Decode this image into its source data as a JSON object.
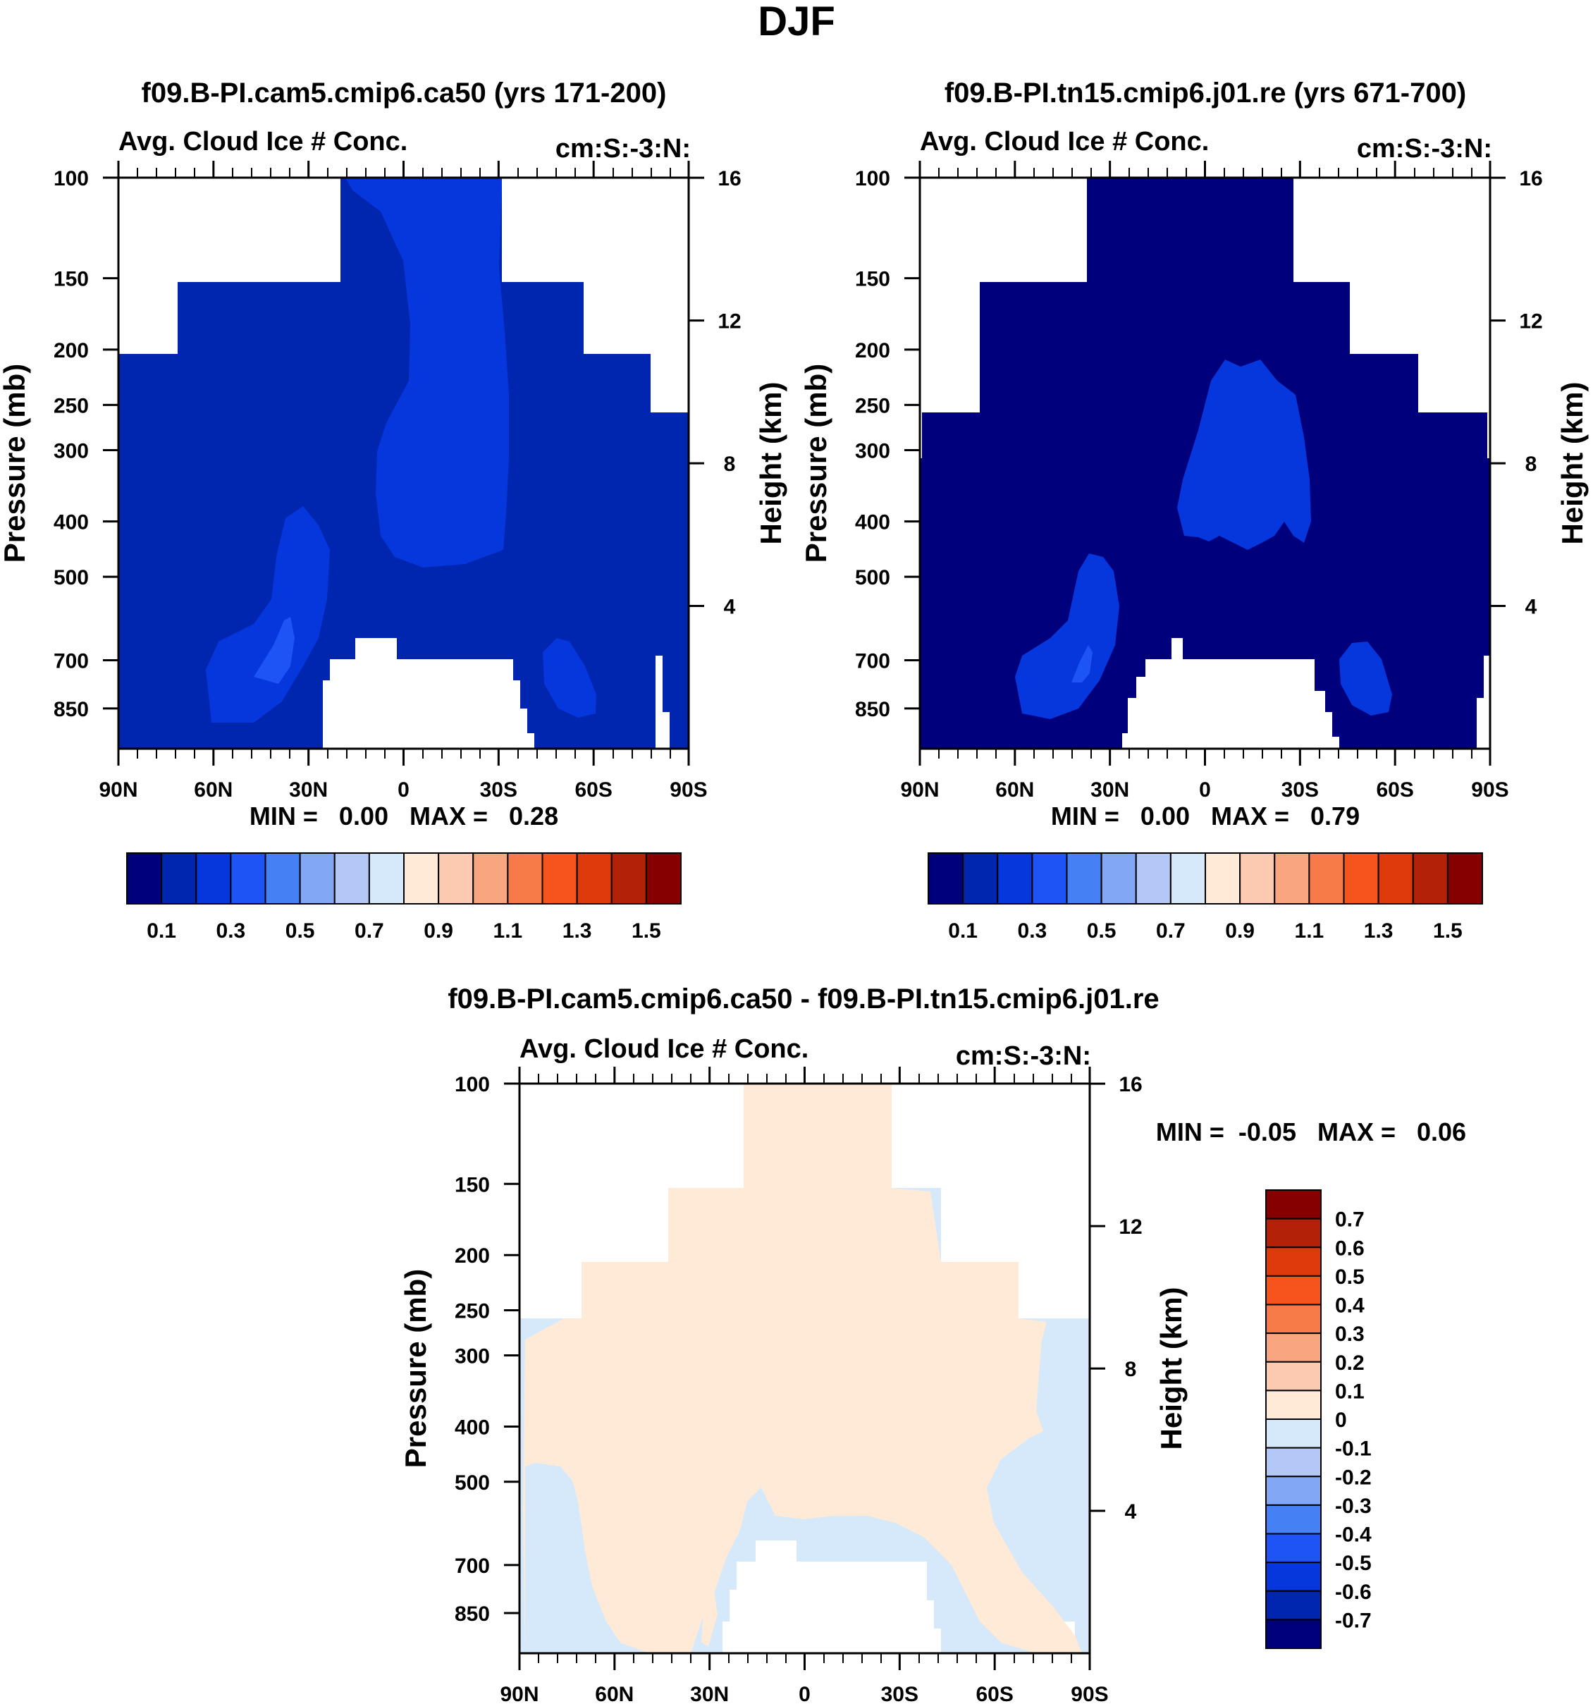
{
  "figure": {
    "title": "DJF"
  },
  "colors": {
    "abs_levels": [
      "#00007d",
      "#0026b0",
      "#0537dc",
      "#1e54f5",
      "#4680f5",
      "#82a8f5",
      "#b4c8f7",
      "#d6e9fa",
      "#feead6",
      "#fbcab0",
      "#f9a57f",
      "#f77b49",
      "#f5541d",
      "#df3a0c",
      "#b32108",
      "#870000"
    ],
    "diff_levels": [
      "#00007d",
      "#0026b0",
      "#0537dc",
      "#1e54f5",
      "#4680f5",
      "#82a8f5",
      "#b4c8f7",
      "#d6e9fa",
      "#feead6",
      "#fbcab0",
      "#f9a57f",
      "#f77b49",
      "#f5541d",
      "#df3a0c",
      "#b32108",
      "#870000"
    ]
  },
  "chart_data": [
    {
      "id": "panel-left",
      "type": "heatmap",
      "title": "f09.B-PI.cam5.cmip6.ca50 (yrs 171-200)",
      "subtitle_left": "Avg. Cloud Ice # Conc.",
      "subtitle_right": "cm:S:-3:N:",
      "ylabel": "Pressure (mb)",
      "ylabel_right": "Height (km)",
      "x_ticks": [
        "90N",
        "60N",
        "30N",
        "0",
        "30S",
        "60S",
        "90S"
      ],
      "x_values": [
        90,
        60,
        30,
        0,
        -30,
        -60,
        -90
      ],
      "y_ticks": [
        "100",
        "150",
        "200",
        "250",
        "300",
        "400",
        "500",
        "700",
        "850"
      ],
      "y_values": [
        100,
        150,
        200,
        250,
        300,
        400,
        500,
        700,
        850
      ],
      "y_right_ticks": [
        "16",
        "12",
        "8",
        "4"
      ],
      "y_right_values": [
        16,
        12,
        8,
        4
      ],
      "min_max": "MIN =   0.00   MAX =   0.28",
      "colorbar_labels": [
        "0.1",
        "0.3",
        "0.5",
        "0.7",
        "0.9",
        "1.1",
        "1.3",
        "1.5"
      ],
      "colorbar_values": [
        0.1,
        0.3,
        0.5,
        0.7,
        0.9,
        1.1,
        1.3,
        1.5
      ]
    },
    {
      "id": "panel-right",
      "type": "heatmap",
      "title": "f09.B-PI.tn15.cmip6.j01.re (yrs 671-700)",
      "subtitle_left": "Avg. Cloud Ice # Conc.",
      "subtitle_right": "cm:S:-3:N:",
      "ylabel": "Pressure (mb)",
      "ylabel_right": "Height (km)",
      "x_ticks": [
        "90N",
        "60N",
        "30N",
        "0",
        "30S",
        "60S",
        "90S"
      ],
      "x_values": [
        90,
        60,
        30,
        0,
        -30,
        -60,
        -90
      ],
      "y_ticks": [
        "100",
        "150",
        "200",
        "250",
        "300",
        "400",
        "500",
        "700",
        "850"
      ],
      "y_values": [
        100,
        150,
        200,
        250,
        300,
        400,
        500,
        700,
        850
      ],
      "y_right_ticks": [
        "16",
        "12",
        "8",
        "4"
      ],
      "y_right_values": [
        16,
        12,
        8,
        4
      ],
      "min_max": "MIN =   0.00   MAX =   0.79",
      "colorbar_labels": [
        "0.1",
        "0.3",
        "0.5",
        "0.7",
        "0.9",
        "1.1",
        "1.3",
        "1.5"
      ],
      "colorbar_values": [
        0.1,
        0.3,
        0.5,
        0.7,
        0.9,
        1.1,
        1.3,
        1.5
      ]
    },
    {
      "id": "panel-diff",
      "type": "heatmap",
      "title": "f09.B-PI.cam5.cmip6.ca50 - f09.B-PI.tn15.cmip6.j01.re",
      "subtitle_left": "Avg. Cloud Ice # Conc.",
      "subtitle_right": "cm:S:-3:N:",
      "ylabel": "Pressure (mb)",
      "ylabel_right": "Height (km)",
      "x_ticks": [
        "90N",
        "60N",
        "30N",
        "0",
        "30S",
        "60S",
        "90S"
      ],
      "x_values": [
        90,
        60,
        30,
        0,
        -30,
        -60,
        -90
      ],
      "y_ticks": [
        "100",
        "150",
        "200",
        "250",
        "300",
        "400",
        "500",
        "700",
        "850"
      ],
      "y_values": [
        100,
        150,
        200,
        250,
        300,
        400,
        500,
        700,
        850
      ],
      "y_right_ticks": [
        "16",
        "12",
        "8",
        "4"
      ],
      "y_right_values": [
        16,
        12,
        8,
        4
      ],
      "min_max": "MIN =  -0.05   MAX =   0.06",
      "colorbar_labels": [
        "0.7",
        "0.6",
        "0.5",
        "0.4",
        "0.3",
        "0.2",
        "0.1",
        "0",
        "-0.1",
        "-0.2",
        "-0.3",
        "-0.4",
        "-0.5",
        "-0.6",
        "-0.7"
      ],
      "colorbar_values": [
        0.7,
        0.6,
        0.5,
        0.4,
        0.3,
        0.2,
        0.1,
        0,
        -0.1,
        -0.2,
        -0.3,
        -0.4,
        -0.5,
        -0.6,
        -0.7
      ]
    }
  ]
}
